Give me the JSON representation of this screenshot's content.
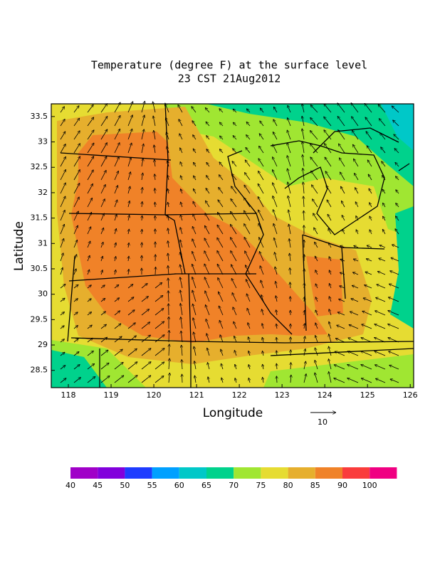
{
  "map": {
    "title": "Temperature (degree F) at the surface level",
    "subtitle": "23 CST 21Aug2012",
    "xlabel": "Longitude",
    "ylabel": "Latitude",
    "xlim": [
      117.6,
      126.08
    ],
    "ylim": [
      28.16,
      33.75
    ],
    "xticks": [
      118,
      119,
      120,
      121,
      122,
      123,
      124,
      125,
      126
    ],
    "yticks": [
      28.5,
      29,
      29.5,
      30,
      30.5,
      31,
      31.5,
      32,
      32.5,
      33,
      33.5
    ],
    "vector_reference": "10",
    "colorbar": {
      "levels": [
        40,
        45,
        50,
        55,
        60,
        65,
        70,
        75,
        80,
        85,
        90,
        100
      ],
      "colors": [
        "#a000c8",
        "#8200dc",
        "#1e3cff",
        "#00a0ff",
        "#00c8c8",
        "#00d28c",
        "#a0e632",
        "#e6dc32",
        "#e6af2d",
        "#f08228",
        "#fa3c3c",
        "#f00082"
      ]
    }
  }
}
